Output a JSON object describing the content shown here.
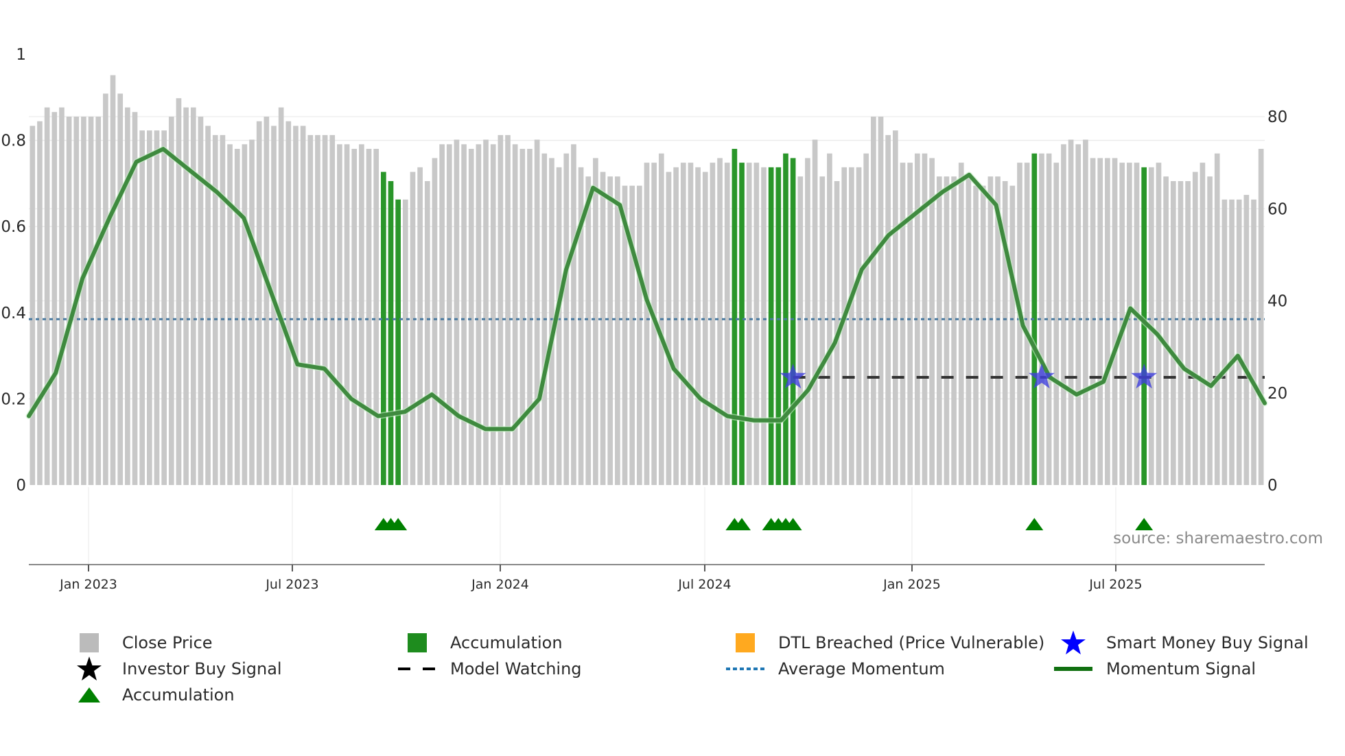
{
  "chart_data": {
    "type": "bar",
    "title": "",
    "xlabel": "",
    "ylabel_left": "",
    "ylabel_right": "",
    "left_axis": {
      "ticks": [
        "0",
        "0.2",
        "0.4",
        "0.6",
        "0.8",
        "1"
      ],
      "range": [
        0,
        1
      ]
    },
    "right_axis": {
      "ticks": [
        "0",
        "20",
        "40",
        "60",
        "80"
      ],
      "range": [
        0,
        93.6
      ]
    },
    "x_ticks": [
      "Jan 2023",
      "Jul 2023",
      "Jan 2024",
      "Jul 2024",
      "Jan 2025",
      "Jul 2025"
    ],
    "grid": true,
    "legend_position": "bottom",
    "source": "source: sharemaestro.com",
    "close_price": [
      78,
      79,
      82,
      81,
      82,
      80,
      80,
      80,
      80,
      80,
      85,
      89,
      85,
      82,
      81,
      77,
      77,
      77,
      77,
      80,
      84,
      82,
      82,
      80,
      78,
      76,
      76,
      74,
      73,
      74,
      75,
      79,
      80,
      78,
      82,
      79,
      78,
      78,
      76,
      76,
      76,
      76,
      74,
      74,
      73,
      74,
      73,
      73,
      68,
      66,
      62,
      62,
      68,
      69,
      66,
      71,
      74,
      74,
      75,
      74,
      73,
      74,
      75,
      74,
      76,
      76,
      74,
      73,
      73,
      75,
      72,
      71,
      69,
      72,
      74,
      69,
      67,
      71,
      68,
      67,
      67,
      65,
      65,
      65,
      70,
      70,
      72,
      68,
      69,
      70,
      70,
      69,
      68,
      70,
      71,
      70,
      73,
      70,
      70,
      70,
      69,
      69,
      69,
      72,
      71,
      67,
      71,
      75,
      67,
      72,
      66,
      69,
      69,
      69,
      72,
      80,
      80,
      76,
      77,
      70,
      70,
      72,
      72,
      71,
      67,
      67,
      67,
      70,
      67,
      65,
      65,
      67,
      67,
      66,
      65,
      70,
      70,
      72,
      72,
      72,
      70,
      74,
      75,
      74,
      75,
      71,
      71,
      71,
      71,
      70,
      70,
      70,
      69,
      69,
      70,
      67,
      66,
      66,
      66,
      68,
      70,
      67,
      72,
      62,
      62,
      62,
      63,
      62,
      73
    ],
    "accumulation_bar_indices": [
      48,
      49,
      50,
      96,
      97,
      101,
      102,
      103,
      104,
      137,
      152
    ],
    "momentum_signal": {
      "description": "smoothed green line, left axis 0-1",
      "points": [
        [
          0,
          0.16
        ],
        [
          5,
          0.26
        ],
        [
          10,
          0.48
        ],
        [
          15,
          0.62
        ],
        [
          20,
          0.75
        ],
        [
          25,
          0.78
        ],
        [
          30,
          0.73
        ],
        [
          35,
          0.68
        ],
        [
          40,
          0.62
        ],
        [
          45,
          0.45
        ],
        [
          50,
          0.28
        ],
        [
          55,
          0.27
        ],
        [
          60,
          0.2
        ],
        [
          65,
          0.16
        ],
        [
          70,
          0.17
        ],
        [
          75,
          0.21
        ],
        [
          80,
          0.16
        ],
        [
          85,
          0.13
        ],
        [
          90,
          0.13
        ],
        [
          95,
          0.2
        ],
        [
          100,
          0.5
        ],
        [
          105,
          0.69
        ],
        [
          110,
          0.65
        ],
        [
          115,
          0.43
        ],
        [
          120,
          0.27
        ],
        [
          125,
          0.2
        ],
        [
          130,
          0.16
        ],
        [
          135,
          0.15
        ],
        [
          140,
          0.15
        ],
        [
          145,
          0.22
        ],
        [
          150,
          0.33
        ],
        [
          155,
          0.5
        ],
        [
          160,
          0.58
        ],
        [
          165,
          0.63
        ],
        [
          170,
          0.68
        ],
        [
          175,
          0.72
        ],
        [
          180,
          0.65
        ],
        [
          185,
          0.37
        ],
        [
          190,
          0.25
        ],
        [
          195,
          0.21
        ],
        [
          200,
          0.24
        ],
        [
          205,
          0.41
        ],
        [
          210,
          0.35
        ],
        [
          215,
          0.27
        ],
        [
          220,
          0.23
        ],
        [
          225,
          0.3
        ],
        [
          230,
          0.19
        ]
      ]
    },
    "average_momentum": 0.385,
    "model_watching_level": 0.25,
    "smart_money_buy_signals": [
      {
        "date_index": 104,
        "value": 0.25
      },
      {
        "date_index": 138,
        "value": 0.25
      },
      {
        "date_index": 152,
        "value": 0.25
      }
    ],
    "accumulation_triangles": [
      48,
      49,
      50,
      96,
      97,
      101,
      102,
      103,
      104,
      137,
      152
    ],
    "legend": [
      {
        "label": "Close Price",
        "marker": "square",
        "color": "#bbbbbb"
      },
      {
        "label": "Accumulation",
        "marker": "square",
        "color": "#1e8c1e"
      },
      {
        "label": "DTL Breached (Price Vulnerable)",
        "marker": "square",
        "color": "#ffa91f"
      },
      {
        "label": "Smart Money Buy Signal",
        "marker": "star",
        "color": "#0000ff"
      },
      {
        "label": "Investor Buy Signal",
        "marker": "star",
        "color": "#000000"
      },
      {
        "label": "Model Watching",
        "marker": "dashed-line",
        "color": "#000000"
      },
      {
        "label": "Average Momentum",
        "marker": "dotted-line",
        "color": "#1f77b4"
      },
      {
        "label": "Momentum Signal",
        "marker": "line",
        "color": "#107010"
      },
      {
        "label": "Accumulation",
        "marker": "triangle",
        "color": "#008000"
      }
    ]
  },
  "legend": {
    "close_price": "Close Price",
    "accumulation_bar": "Accumulation",
    "dtl_breached": "DTL Breached (Price Vulnerable)",
    "smart_money": "Smart Money Buy Signal",
    "investor_buy": "Investor Buy Signal",
    "model_watching": "Model Watching",
    "average_momentum": "Average Momentum",
    "momentum_signal": "Momentum Signal",
    "accumulation_triangle": "Accumulation"
  },
  "colors": {
    "close_price": "#c8c8c8",
    "accumulation": "#2a962a",
    "dtl": "#ffa91f",
    "smart_money": "#4040dd",
    "momentum": "#3f8a3f",
    "avg_momentum": "#4a7aa0",
    "model_watching": "#333333",
    "triangle": "#008000"
  },
  "source": "source: sharemaestro.com"
}
